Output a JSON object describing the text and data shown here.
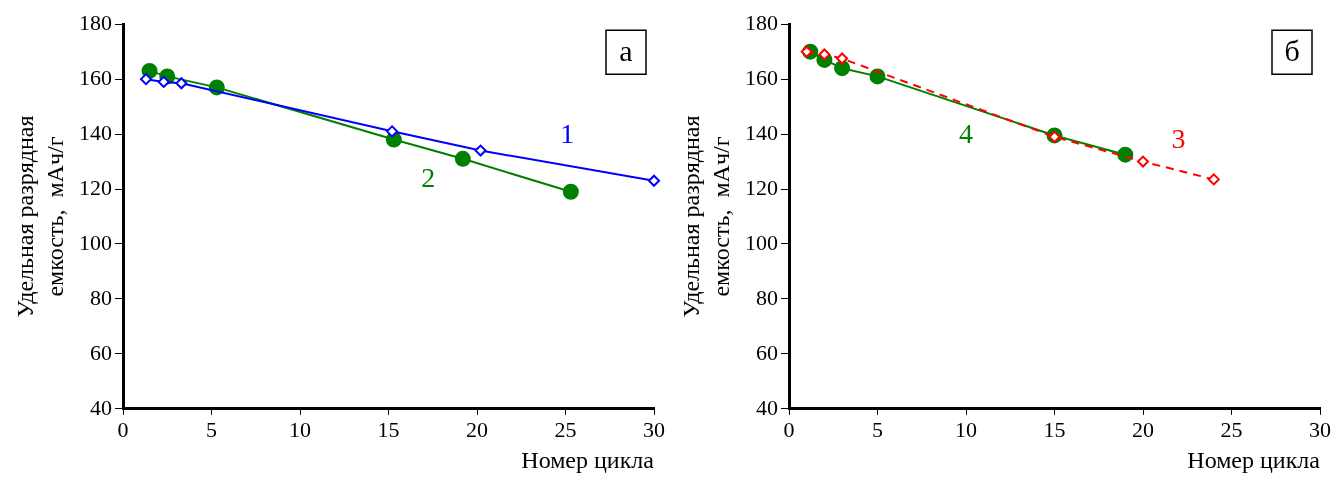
{
  "chart_data": [
    {
      "type": "line",
      "title": "а",
      "xlabel": "Номер цикла",
      "ylabel": "Удельная разрядная емкость,  мАч/г",
      "xlim": [
        0,
        30
      ],
      "xticks": [
        0,
        5,
        10,
        15,
        20,
        25,
        30
      ],
      "ylim": [
        40,
        180
      ],
      "yticks": [
        40,
        60,
        80,
        100,
        120,
        140,
        160,
        180
      ],
      "grid": false,
      "legend": false,
      "series": [
        {
          "name": "1",
          "color": "#0000ff",
          "marker": "diamond",
          "line_style": "solid",
          "x": [
            1.3,
            2.3,
            3.3,
            15.2,
            20.2,
            30
          ],
          "values": [
            160,
            159,
            158.5,
            141,
            134,
            123
          ]
        },
        {
          "name": "2",
          "color": "#008000",
          "marker": "circle",
          "line_style": "solid",
          "x": [
            1.5,
            2.5,
            5.3,
            15.3,
            19.2,
            25.3
          ],
          "values": [
            163,
            161,
            157,
            138,
            131,
            119
          ]
        }
      ]
    },
    {
      "type": "line",
      "title": "б",
      "xlabel": "Номер цикла",
      "ylabel": "Удельная разрядная емкость,  мАч/г",
      "xlim": [
        0,
        30
      ],
      "xticks": [
        0,
        5,
        10,
        15,
        20,
        25,
        30
      ],
      "ylim": [
        40,
        180
      ],
      "yticks": [
        40,
        60,
        80,
        100,
        120,
        140,
        160,
        180
      ],
      "grid": false,
      "legend": false,
      "series": [
        {
          "name": "3",
          "color": "#ff0000",
          "marker": "diamond",
          "line_style": "dashed",
          "x": [
            1,
            2,
            3,
            15,
            20,
            24
          ],
          "values": [
            170,
            169,
            167.5,
            139,
            130,
            123.5
          ]
        },
        {
          "name": "4",
          "color": "#008000",
          "marker": "circle",
          "line_style": "solid",
          "x": [
            1.2,
            2,
            3,
            5,
            15,
            19
          ],
          "values": [
            170,
            167,
            164,
            161,
            139.5,
            132.5
          ]
        }
      ]
    }
  ]
}
